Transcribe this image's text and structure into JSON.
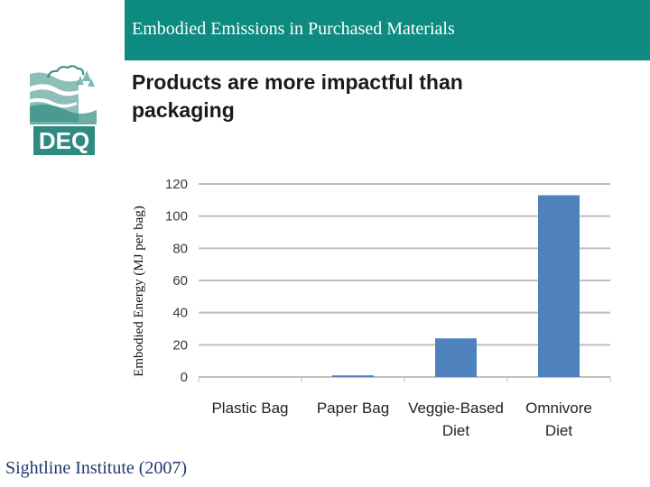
{
  "header": {
    "title": "Embodied Emissions in Purchased Materials"
  },
  "logo": {
    "text": "DEQ"
  },
  "slide": {
    "subtitle": "Products are more impactful than packaging"
  },
  "colors": {
    "header_bg": "#0e8b80",
    "bar": "#4f81bd",
    "logo": "#2f8a80",
    "grid": "#bfbfbf"
  },
  "chart_data": {
    "type": "bar",
    "title": "",
    "xlabel": "",
    "ylabel": "Embodied Energy (MJ per bag)",
    "categories": [
      "Plastic Bag",
      "Paper Bag",
      "Veggie-Based Diet",
      "Omnivore Diet"
    ],
    "category_lines": [
      [
        "Plastic Bag"
      ],
      [
        "Paper Bag"
      ],
      [
        "Veggie-Based",
        "Diet"
      ],
      [
        "Omnivore",
        "Diet"
      ]
    ],
    "values": [
      0,
      1,
      24,
      113
    ],
    "ylim": [
      0,
      120
    ],
    "yticks": [
      0,
      20,
      40,
      60,
      80,
      100,
      120
    ],
    "grid": true
  },
  "source": {
    "text": "Sightline Institute (2007)"
  }
}
